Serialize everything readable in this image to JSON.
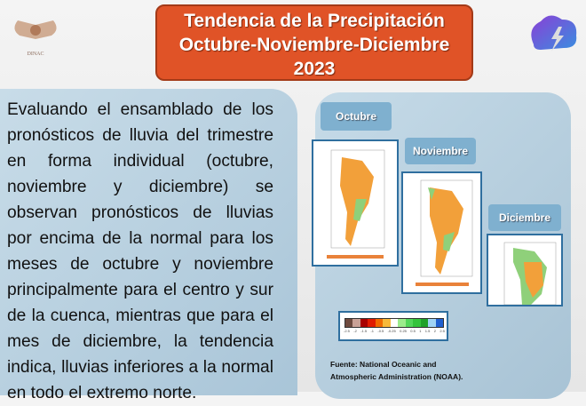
{
  "header": {
    "title_lines": [
      "Tendencia de la Precipitación",
      "Octubre-Noviembre-Diciembre",
      "2023"
    ],
    "logo_left_text": "DINAC"
  },
  "body_text": "Evaluando el ensamblado de los pronósticos de lluvia del trimestre en forma individual (octubre, noviembre y diciembre) se observan pronósticos de lluvias por encima de la normal para los meses de octubre y noviembre principalmente para el centro y sur de la cuenca, mientras que para el mes de diciembre, la tendencia indica, lluvias inferiores a la normal en todo el extremo norte.",
  "maps": [
    {
      "label": "Octubre"
    },
    {
      "label": "Noviembre"
    },
    {
      "label": "Diciembre"
    }
  ],
  "legend": {
    "ticks": [
      "-2.5",
      "-2",
      "-1.5",
      "-1",
      "-0.5",
      "-0.25",
      "0.25",
      "0.5",
      "1",
      "1.5",
      "2",
      "2.5"
    ],
    "colors": [
      "#6e4a3e",
      "#c9a196",
      "#a80000",
      "#e01b00",
      "#f06a00",
      "#f7b93a",
      "#ffffff",
      "#9ceb8c",
      "#53d65a",
      "#34c43c",
      "#1fa12a",
      "#9fd3f5",
      "#1f5fcf"
    ]
  },
  "source": [
    "Fuente: National Oceanic and",
    "Atmospheric Administration (NOAA)."
  ],
  "colors": {
    "title_bg": "#e05327",
    "panel": "#b8d0e0",
    "label_bg": "#7fb0cf"
  }
}
